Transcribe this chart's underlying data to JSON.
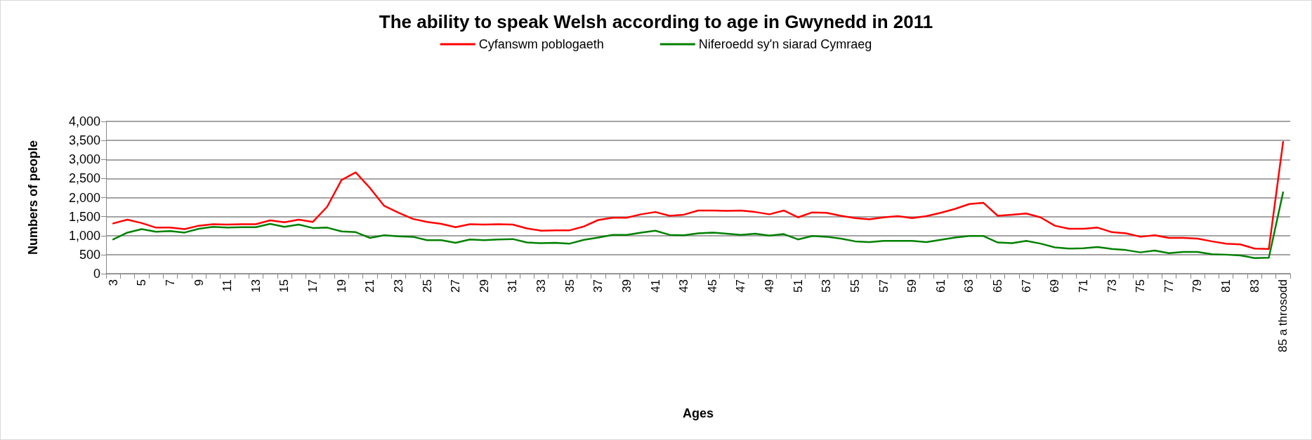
{
  "chart_data": {
    "type": "line",
    "title": "The ability to speak Welsh according to age in Gwynedd in 2011",
    "xlabel": "Ages",
    "ylabel": "Numbers of people",
    "categories": [
      "3",
      null,
      "5",
      null,
      "7",
      null,
      "9",
      null,
      "11",
      null,
      "13",
      null,
      "15",
      null,
      "17",
      null,
      "19",
      null,
      "21",
      null,
      "23",
      null,
      "25",
      null,
      "27",
      null,
      "29",
      null,
      "31",
      null,
      "33",
      null,
      "35",
      null,
      "37",
      null,
      "39",
      null,
      "41",
      null,
      "43",
      null,
      "45",
      null,
      "47",
      null,
      "49",
      null,
      "51",
      null,
      "53",
      null,
      "55",
      null,
      "57",
      null,
      "59",
      null,
      "61",
      null,
      "63",
      null,
      "65",
      null,
      "67",
      null,
      "69",
      null,
      "71",
      null,
      "73",
      null,
      "75",
      null,
      "77",
      null,
      "79",
      null,
      "81",
      null,
      "83",
      null,
      "85 a throsodd"
    ],
    "series": [
      {
        "name": "Cyfanswm poblogaeth",
        "color": "#ff0000",
        "values": [
          1320,
          1420,
          1330,
          1210,
          1210,
          1170,
          1260,
          1300,
          1290,
          1300,
          1300,
          1400,
          1350,
          1420,
          1360,
          1760,
          2460,
          2660,
          2250,
          1780,
          1600,
          1440,
          1360,
          1310,
          1220,
          1300,
          1290,
          1300,
          1290,
          1190,
          1130,
          1140,
          1140,
          1240,
          1410,
          1470,
          1470,
          1560,
          1620,
          1520,
          1550,
          1660,
          1660,
          1650,
          1660,
          1620,
          1560,
          1660,
          1480,
          1610,
          1600,
          1520,
          1460,
          1430,
          1480,
          1510,
          1460,
          1510,
          1600,
          1700,
          1830,
          1860,
          1520,
          1550,
          1580,
          1480,
          1260,
          1180,
          1180,
          1210,
          1090,
          1060,
          970,
          1010,
          940,
          940,
          920,
          850,
          790,
          770,
          660,
          650,
          3460
        ]
      },
      {
        "name": "Niferoedd sy'n siarad Cymraeg",
        "color": "#008000",
        "values": [
          900,
          1080,
          1170,
          1100,
          1120,
          1080,
          1180,
          1230,
          1210,
          1220,
          1220,
          1310,
          1230,
          1290,
          1200,
          1210,
          1110,
          1090,
          940,
          1010,
          980,
          970,
          880,
          880,
          810,
          900,
          880,
          900,
          910,
          820,
          800,
          810,
          790,
          890,
          950,
          1020,
          1020,
          1080,
          1130,
          1020,
          1010,
          1060,
          1080,
          1050,
          1020,
          1050,
          1000,
          1040,
          900,
          990,
          970,
          920,
          850,
          830,
          860,
          860,
          860,
          830,
          890,
          950,
          990,
          990,
          820,
          800,
          860,
          790,
          690,
          660,
          670,
          700,
          650,
          620,
          560,
          610,
          540,
          570,
          570,
          510,
          500,
          480,
          410,
          420,
          2140
        ]
      }
    ],
    "ylim": [
      0,
      4000
    ],
    "yticks": [
      0,
      500,
      {
        "value": 1000,
        "label": "1,000"
      },
      {
        "value": 1500,
        "label": "1,500"
      },
      {
        "value": 2000,
        "label": "2,000"
      },
      {
        "value": 2500,
        "label": "2,500"
      },
      {
        "value": 3000,
        "label": "3,000"
      },
      {
        "value": 3500,
        "label": "3,500"
      },
      {
        "value": 4000,
        "label": "4,000"
      }
    ],
    "grid": "y",
    "legend": "top",
    "marker": "none",
    "line_style": "solid"
  }
}
